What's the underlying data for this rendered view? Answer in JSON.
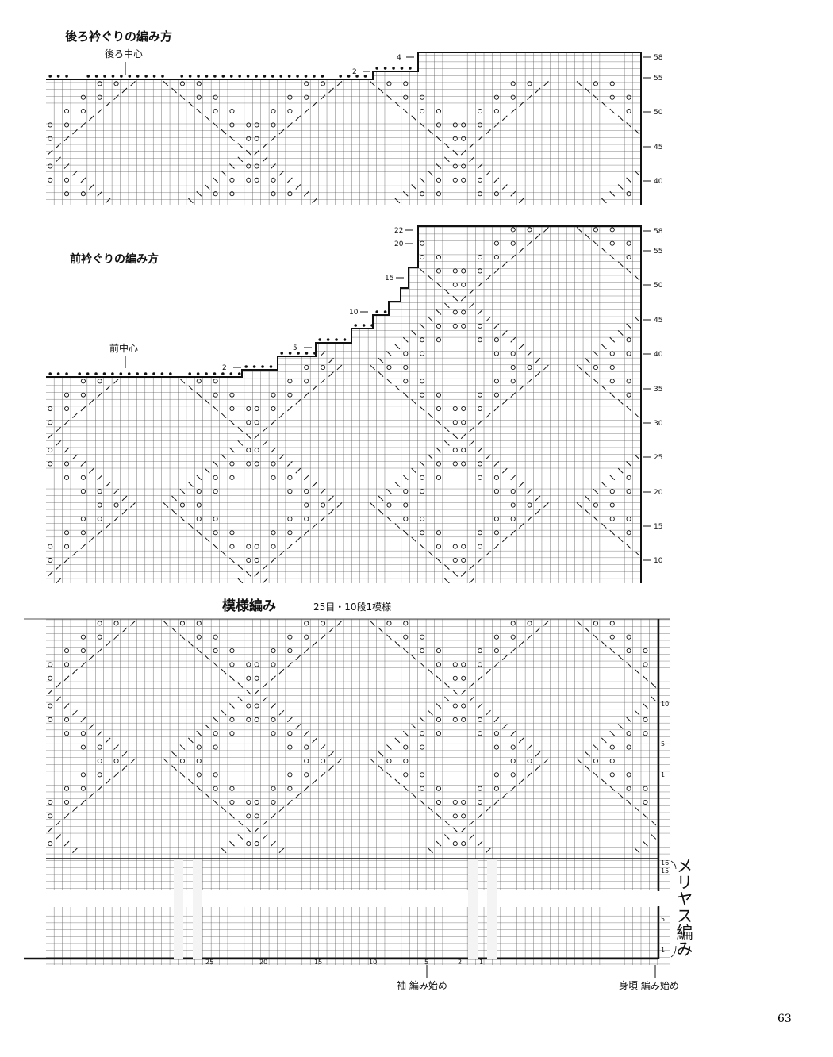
{
  "back_neck": {
    "title": "後ろ衿ぐりの編み方",
    "center_label": "後ろ中心",
    "step_labels": [
      "4",
      "2"
    ],
    "row_labels": [
      "58",
      "55",
      "50",
      "45",
      "40"
    ]
  },
  "front_neck": {
    "title": "前衿ぐりの編み方",
    "center_label": "前中心",
    "step_labels": [
      "22",
      "20",
      "15",
      "10",
      "5",
      "2"
    ],
    "row_labels": [
      "58",
      "55",
      "50",
      "45",
      "40",
      "35",
      "30",
      "25",
      "20",
      "15",
      "10"
    ]
  },
  "pattern": {
    "title": "模様編み",
    "subtitle": "25目・10段1模様",
    "row_labels": [
      "10",
      "5",
      "1",
      "16",
      "15",
      "5",
      "1"
    ],
    "stitch_labels": [
      "25",
      "20",
      "15",
      "10",
      "5",
      "2",
      "1"
    ],
    "stockinette_label": "メリヤス編み",
    "sleeve_start": "袖 編み始め",
    "body_start": "身頃 編み始め"
  },
  "page_number": "63",
  "colors": {
    "ink": "#111111",
    "grid": "#555555",
    "paper": "#ffffff"
  }
}
